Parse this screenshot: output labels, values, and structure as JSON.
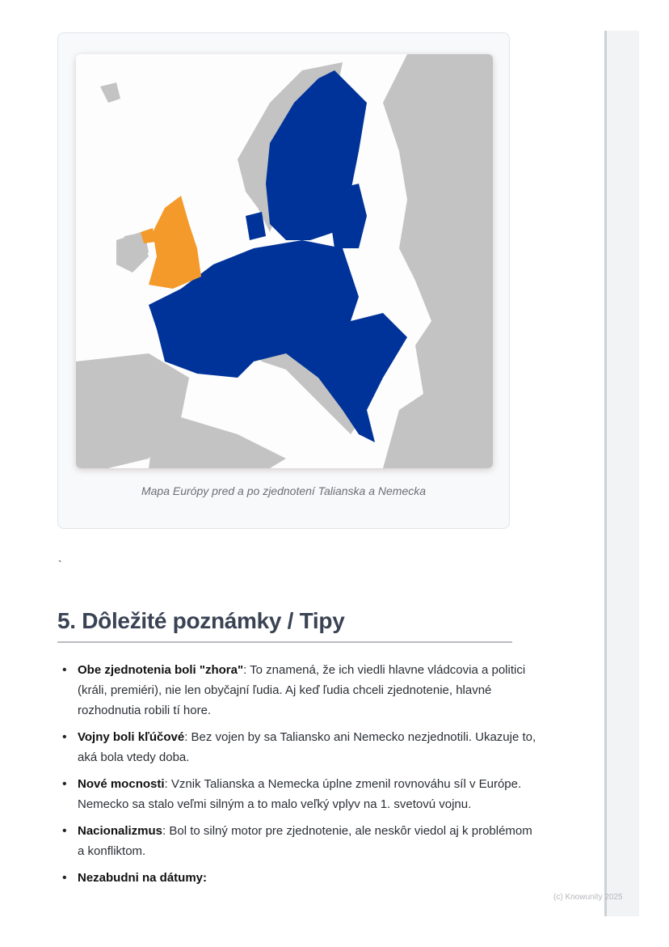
{
  "figure": {
    "caption": "Mapa Európy pred a po zjednotení Talianska a Nemecka",
    "colors": {
      "highlight": "#003399",
      "uk": "#f39a2a",
      "land": "#c3c3c3",
      "sea": "#fdfdfd"
    }
  },
  "stray_char": "`",
  "section": {
    "title": "5. Dôležité poznámky / Tipy",
    "items": [
      {
        "bold": "Obe zjednotenia boli \"zhora\"",
        "text": ": To znamená, že ich viedli hlavne vládcovia a politici (králi, premiéri), nie len obyčajní ľudia. Aj keď ľudia chceli zjednotenie, hlavné rozhodnutia robili tí hore."
      },
      {
        "bold": "Vojny boli kľúčové",
        "text": ": Bez vojen by sa Taliansko ani Nemecko nezjednotili. Ukazuje to, aká bola vtedy doba."
      },
      {
        "bold": "Nové mocnosti",
        "text": ": Vznik Talianska a Nemecka úplne zmenil rovnováhu síl v Európe. Nemecko sa stalo veľmi silným a to malo veľký vplyv na 1. svetovú vojnu."
      },
      {
        "bold": "Nacionalizmus",
        "text": ": Bol to silný motor pre zjednotenie, ale neskôr viedol aj k problémom a konfliktom."
      },
      {
        "bold": "Nezabudni na dátumy:",
        "text": ""
      }
    ]
  },
  "footer": {
    "copyright": "(c) Knowunity 2025"
  }
}
